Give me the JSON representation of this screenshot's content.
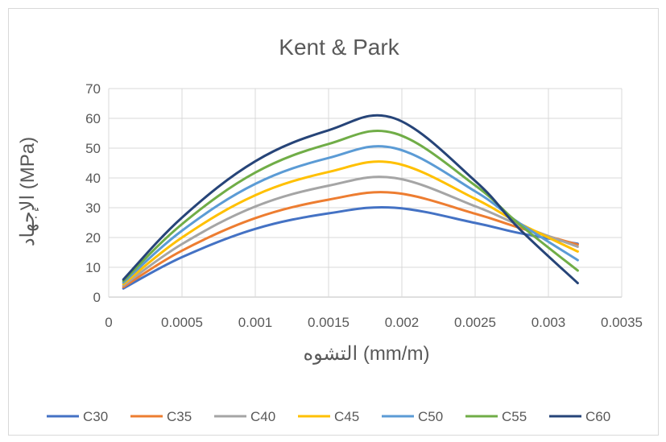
{
  "chart_data": {
    "type": "line",
    "title": "Kent & Park",
    "xlabel": "التشوه     (mm/m)",
    "ylabel": "الإجهاد (MPa)",
    "xlim": [
      0,
      0.0035
    ],
    "ylim": [
      0,
      70
    ],
    "xticks": [
      "0",
      "0.0005",
      "0.001",
      "0.0015",
      "0.002",
      "0.0025",
      "0.003",
      "0.0035"
    ],
    "yticks": [
      "0",
      "10",
      "20",
      "30",
      "40",
      "50",
      "60",
      "70"
    ],
    "grid": true,
    "legend_position": "bottom",
    "series": [
      {
        "name": "C30",
        "color": "#4472C4",
        "x": [
          0.0001,
          0.0005,
          0.001,
          0.0015,
          0.00195,
          0.0025,
          0.0028,
          0.0032
        ],
        "y": [
          2.9,
          13.4,
          22.9,
          28.1,
          30.0,
          24.9,
          21.5,
          17.9
        ]
      },
      {
        "name": "C35",
        "color": "#ED7D31",
        "x": [
          0.0001,
          0.0005,
          0.001,
          0.0015,
          0.00195,
          0.0025,
          0.0028,
          0.0032
        ],
        "y": [
          3.4,
          15.6,
          26.5,
          32.7,
          35.0,
          28.0,
          23.3,
          17.6
        ]
      },
      {
        "name": "C40",
        "color": "#A5A5A5",
        "x": [
          0.0001,
          0.0005,
          0.001,
          0.0015,
          0.00195,
          0.0025,
          0.0028,
          0.0032
        ],
        "y": [
          3.9,
          17.8,
          30.4,
          37.4,
          40.0,
          30.5,
          24.2,
          16.9
        ]
      },
      {
        "name": "C45",
        "color": "#FFC000",
        "x": [
          0.0001,
          0.0005,
          0.001,
          0.0015,
          0.00195,
          0.0025,
          0.0028,
          0.0032
        ],
        "y": [
          4.4,
          20.0,
          34.2,
          42.0,
          45.0,
          33.0,
          24.8,
          15.3
        ]
      },
      {
        "name": "C50",
        "color": "#5B9BD5",
        "x": [
          0.0001,
          0.0005,
          0.001,
          0.0015,
          0.00195,
          0.0025,
          0.0028,
          0.0032
        ],
        "y": [
          4.9,
          22.3,
          38.0,
          46.7,
          50.0,
          35.5,
          24.9,
          12.4
        ]
      },
      {
        "name": "C55",
        "color": "#70AD47",
        "x": [
          0.0001,
          0.0005,
          0.001,
          0.0015,
          0.00195,
          0.0025,
          0.0028,
          0.0032
        ],
        "y": [
          5.4,
          24.5,
          41.8,
          51.4,
          55.0,
          37.5,
          24.5,
          8.9
        ]
      },
      {
        "name": "C60",
        "color": "#264478",
        "x": [
          0.0001,
          0.0005,
          0.001,
          0.0015,
          0.00195,
          0.0025,
          0.0028,
          0.0032
        ],
        "y": [
          5.9,
          26.7,
          45.6,
          56.0,
          60.0,
          39.0,
          23.0,
          4.7
        ]
      }
    ]
  }
}
